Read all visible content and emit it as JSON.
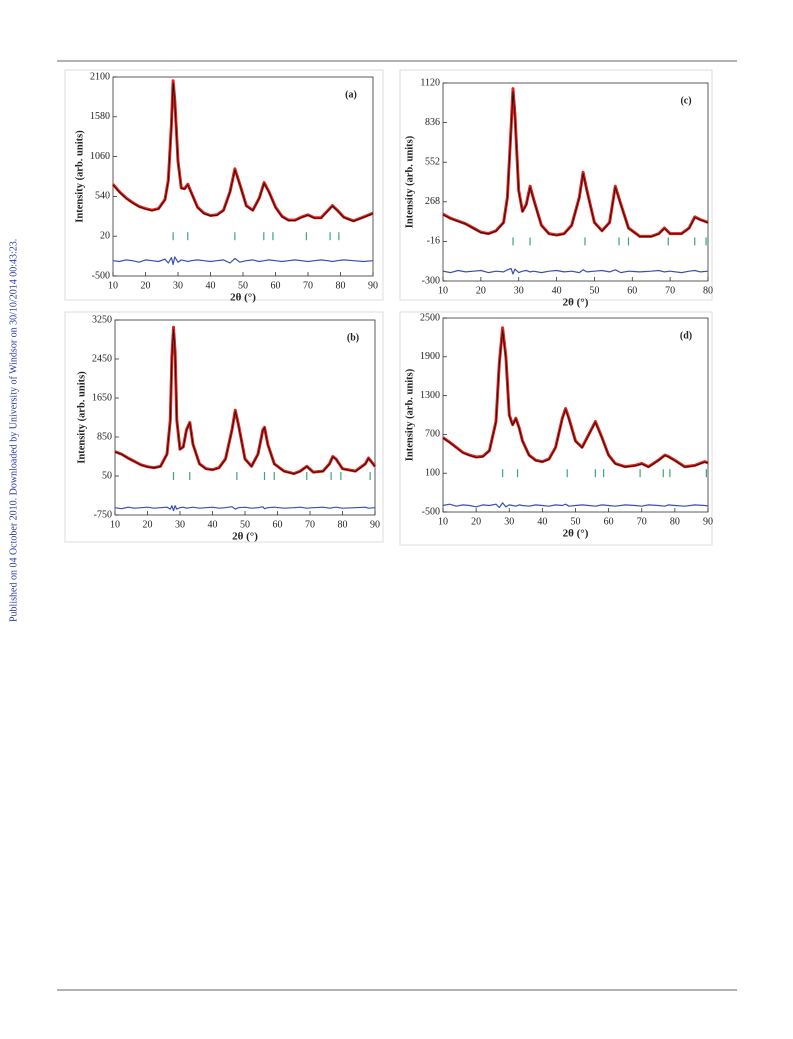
{
  "side_note": "Published on 04 October 2010. Downloaded by University of Windsor on 30/10/2014 00:43:23.",
  "chart_data": [
    {
      "type": "line",
      "label": "(a)",
      "xlabel": "2θ (°)",
      "ylabel": "Intensity (arb. units)",
      "xlim": [
        10,
        90
      ],
      "xticks": [
        10,
        20,
        30,
        40,
        50,
        60,
        70,
        80,
        90
      ],
      "ylim": [
        -500,
        2100
      ],
      "yticks": [
        -500,
        20,
        540,
        1060,
        1580,
        2100
      ],
      "x": [
        10,
        12,
        14,
        16,
        18,
        20,
        22,
        24,
        26,
        27,
        28,
        28.5,
        29,
        30,
        31,
        32,
        33,
        34,
        36,
        38,
        40,
        42,
        44,
        46,
        47.5,
        49,
        51,
        53,
        55,
        56.5,
        58,
        60,
        62,
        64,
        66,
        68,
        70,
        72,
        74,
        76,
        77.5,
        79,
        81,
        84,
        87,
        90
      ],
      "series": [
        {
          "color": "#e8201a",
          "values": [
            700,
            600,
            520,
            460,
            410,
            380,
            360,
            380,
            500,
            750,
            1500,
            2050,
            1800,
            1000,
            650,
            640,
            700,
            600,
            400,
            320,
            290,
            300,
            360,
            600,
            900,
            700,
            420,
            360,
            520,
            720,
            600,
            400,
            280,
            230,
            230,
            270,
            300,
            260,
            260,
            350,
            420,
            360,
            270,
            220,
            270,
            320
          ]
        },
        {
          "color": "#111111",
          "values": [
            690,
            595,
            515,
            455,
            405,
            375,
            355,
            375,
            495,
            740,
            1480,
            2020,
            1780,
            990,
            645,
            635,
            690,
            595,
            395,
            315,
            285,
            295,
            355,
            595,
            885,
            695,
            415,
            355,
            515,
            710,
            595,
            395,
            275,
            225,
            225,
            265,
            295,
            255,
            255,
            345,
            415,
            355,
            265,
            215,
            265,
            315
          ]
        },
        {
          "color": "#3a4fb0",
          "values": [
            -300,
            -310,
            -290,
            -300,
            -320,
            -290,
            -300,
            -310,
            -280,
            -330,
            -260,
            -350,
            -250,
            -320,
            -290,
            -300,
            -310,
            -300,
            -290,
            -300,
            -310,
            -300,
            -290,
            -330,
            -270,
            -320,
            -300,
            -290,
            -310,
            -300,
            -290,
            -300,
            -310,
            -300,
            -290,
            -300,
            -310,
            -300,
            -290,
            -300,
            -310,
            -300,
            -290,
            -300,
            -310,
            -300
          ]
        }
      ],
      "bragg_positions": [
        28.5,
        33,
        47.5,
        56.4,
        59.2,
        69.5,
        76.8,
        79.5
      ],
      "bragg_color": "#3aa870"
    },
    {
      "type": "line",
      "label": "(c)",
      "xlabel": "2θ (°)",
      "ylabel": "Intensity (arb. units)",
      "xlim": [
        10,
        80
      ],
      "xticks": [
        10,
        20,
        30,
        40,
        50,
        60,
        70,
        80
      ],
      "ylim": [
        -300,
        1120
      ],
      "yticks": [
        -300,
        -16,
        268,
        552,
        836,
        1120
      ],
      "x": [
        10,
        12,
        14,
        16,
        18,
        20,
        22,
        24,
        26,
        27,
        28,
        28.5,
        29,
        30,
        31,
        32,
        33,
        34,
        36,
        38,
        40,
        42,
        44,
        46,
        47,
        48,
        50,
        52,
        54,
        55.5,
        57,
        59,
        62,
        65,
        67,
        68.5,
        70,
        73,
        75,
        76.5,
        78,
        80
      ],
      "series": [
        {
          "color": "#e8201a",
          "values": [
            180,
            150,
            130,
            110,
            80,
            50,
            40,
            60,
            120,
            300,
            800,
            1080,
            900,
            350,
            200,
            250,
            380,
            280,
            100,
            40,
            30,
            40,
            100,
            300,
            480,
            350,
            120,
            60,
            120,
            380,
            250,
            80,
            20,
            20,
            40,
            80,
            40,
            40,
            80,
            160,
            140,
            120
          ]
        },
        {
          "color": "#111111",
          "values": [
            175,
            148,
            128,
            108,
            78,
            48,
            38,
            58,
            118,
            295,
            790,
            1060,
            890,
            345,
            198,
            245,
            372,
            276,
            98,
            38,
            28,
            38,
            98,
            296,
            470,
            346,
            118,
            58,
            118,
            372,
            246,
            78,
            18,
            18,
            38,
            78,
            38,
            38,
            78,
            156,
            138,
            118
          ]
        },
        {
          "color": "#3a4fb0",
          "values": [
            -230,
            -240,
            -225,
            -235,
            -230,
            -225,
            -240,
            -230,
            -235,
            -220,
            -210,
            -250,
            -215,
            -240,
            -230,
            -225,
            -235,
            -230,
            -240,
            -230,
            -225,
            -235,
            -230,
            -240,
            -220,
            -235,
            -230,
            -225,
            -235,
            -220,
            -240,
            -230,
            -235,
            -230,
            -225,
            -235,
            -230,
            -240,
            -230,
            -225,
            -235,
            -230
          ]
        }
      ],
      "bragg_positions": [
        28.5,
        33,
        47.5,
        56.5,
        59,
        69.5,
        76.5,
        79.5
      ],
      "bragg_color": "#3aa870"
    },
    {
      "type": "line",
      "label": "(b)",
      "xlabel": "2θ (°)",
      "ylabel": "Intensity (arb. units)",
      "xlim": [
        10,
        90
      ],
      "xticks": [
        10,
        20,
        30,
        40,
        50,
        60,
        70,
        80,
        90
      ],
      "ylim": [
        -750,
        3250
      ],
      "yticks": [
        -750,
        50,
        850,
        1650,
        2450,
        3250
      ],
      "x": [
        10,
        12,
        14,
        16,
        18,
        20,
        22,
        24,
        26,
        27,
        27.5,
        28,
        28.5,
        29,
        30,
        31,
        32,
        33,
        34,
        36,
        38,
        40,
        42,
        44,
        46,
        47,
        48,
        50,
        52,
        54,
        55.5,
        56,
        57,
        59,
        62,
        65,
        67,
        69,
        71,
        74,
        76,
        77,
        78,
        80,
        84,
        87,
        88,
        90
      ],
      "series": [
        {
          "color": "#e8201a",
          "values": [
            550,
            500,
            420,
            350,
            280,
            240,
            220,
            250,
            500,
            1200,
            2500,
            3100,
            2600,
            1200,
            600,
            650,
            1000,
            1150,
            700,
            300,
            200,
            180,
            220,
            400,
            1000,
            1400,
            1100,
            400,
            250,
            500,
            1000,
            1050,
            700,
            300,
            150,
            100,
            150,
            250,
            130,
            150,
            300,
            450,
            400,
            200,
            150,
            300,
            420,
            250
          ]
        },
        {
          "color": "#111111",
          "values": [
            545,
            495,
            415,
            345,
            275,
            235,
            215,
            245,
            495,
            1190,
            2480,
            3060,
            2580,
            1190,
            595,
            645,
            990,
            1140,
            695,
            295,
            195,
            175,
            215,
            395,
            990,
            1380,
            1090,
            395,
            245,
            495,
            990,
            1040,
            695,
            295,
            145,
            95,
            145,
            245,
            125,
            145,
            295,
            445,
            395,
            195,
            145,
            295,
            410,
            245
          ]
        },
        {
          "color": "#3a4fb0",
          "values": [
            -600,
            -620,
            -590,
            -610,
            -600,
            -590,
            -610,
            -600,
            -590,
            -630,
            -560,
            -660,
            -560,
            -630,
            -600,
            -590,
            -610,
            -600,
            -590,
            -610,
            -600,
            -590,
            -610,
            -600,
            -580,
            -630,
            -600,
            -590,
            -610,
            -600,
            -580,
            -620,
            -600,
            -590,
            -610,
            -600,
            -590,
            -610,
            -600,
            -590,
            -610,
            -600,
            -590,
            -610,
            -600,
            -590,
            -610,
            -600
          ]
        }
      ],
      "bragg_positions": [
        28,
        33,
        47.5,
        56,
        59,
        69,
        76.5,
        79.5,
        88.5
      ],
      "bragg_color": "#3aa870"
    },
    {
      "type": "line",
      "label": "(d)",
      "xlabel": "2θ (°)",
      "ylabel": "Intensity (arb. units)",
      "xlim": [
        10,
        90
      ],
      "xticks": [
        10,
        20,
        30,
        40,
        50,
        60,
        70,
        80,
        90
      ],
      "ylim": [
        -500,
        2500
      ],
      "yticks": [
        -500,
        100,
        700,
        1300,
        1900,
        2500
      ],
      "x": [
        10,
        12,
        14,
        16,
        18,
        20,
        22,
        24,
        26,
        27,
        28,
        29,
        30,
        31,
        32,
        33,
        34,
        36,
        38,
        40,
        42,
        44,
        46,
        47,
        48,
        50,
        52,
        54,
        56,
        58,
        60,
        62,
        65,
        68,
        70,
        72,
        75,
        77,
        78,
        80,
        83,
        86,
        89,
        90
      ],
      "series": [
        {
          "color": "#e8201a",
          "values": [
            650,
            580,
            500,
            420,
            380,
            350,
            360,
            450,
            900,
            1800,
            2350,
            1900,
            1000,
            850,
            950,
            800,
            600,
            380,
            300,
            280,
            320,
            500,
            950,
            1100,
            950,
            600,
            500,
            700,
            900,
            650,
            380,
            250,
            200,
            220,
            250,
            200,
            300,
            380,
            360,
            300,
            200,
            220,
            280,
            260
          ]
        },
        {
          "color": "#111111",
          "values": [
            645,
            575,
            495,
            415,
            375,
            345,
            355,
            445,
            890,
            1780,
            2310,
            1880,
            990,
            845,
            940,
            795,
            595,
            375,
            295,
            275,
            315,
            495,
            940,
            1085,
            940,
            595,
            495,
            695,
            885,
            645,
            375,
            245,
            195,
            215,
            245,
            195,
            295,
            375,
            355,
            295,
            195,
            215,
            275,
            255
          ]
        },
        {
          "color": "#3a4fb0",
          "values": [
            -400,
            -380,
            -410,
            -390,
            -400,
            -420,
            -390,
            -400,
            -380,
            -430,
            -360,
            -420,
            -390,
            -400,
            -410,
            -390,
            -400,
            -410,
            -390,
            -400,
            -410,
            -390,
            -400,
            -380,
            -410,
            -400,
            -390,
            -400,
            -410,
            -390,
            -400,
            -410,
            -390,
            -400,
            -410,
            -390,
            -400,
            -410,
            -390,
            -400,
            -410,
            -390,
            -400,
            -405
          ]
        }
      ],
      "bragg_positions": [
        28,
        32.5,
        47.5,
        56,
        58.5,
        69.5,
        76.5,
        78.5,
        89.5
      ],
      "bragg_color": "#3aa870"
    }
  ]
}
